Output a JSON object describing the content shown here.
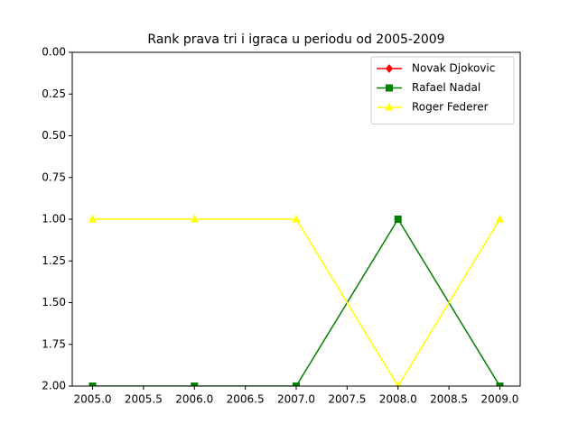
{
  "chart_data": {
    "type": "line",
    "title": "Rank prava tri i igraca u periodu od 2005-2009",
    "x": [
      2005,
      2006,
      2007,
      2008,
      2009
    ],
    "series": [
      {
        "name": "Novak Djokovic",
        "color": "#ff0000",
        "marker": "diamond",
        "values": [
          null,
          null,
          null,
          null,
          null
        ]
      },
      {
        "name": "Rafael Nadal",
        "color": "#008000",
        "marker": "square",
        "values": [
          2,
          2,
          2,
          1,
          2
        ]
      },
      {
        "name": "Roger Federer",
        "color": "#ffff00",
        "marker": "triangle",
        "values": [
          1,
          1,
          1,
          2,
          1
        ]
      }
    ],
    "xlim": [
      2004.8,
      2009.2
    ],
    "xticks": [
      {
        "value": 2005,
        "label": "2005.0"
      },
      {
        "value": 2005.5,
        "label": "2005.5"
      },
      {
        "value": 2006,
        "label": "2006.0"
      },
      {
        "value": 2006.5,
        "label": "2006.5"
      },
      {
        "value": 2007,
        "label": "2007.0"
      },
      {
        "value": 2007.5,
        "label": "2007.5"
      },
      {
        "value": 2008,
        "label": "2008.0"
      },
      {
        "value": 2008.5,
        "label": "2008.5"
      },
      {
        "value": 2009,
        "label": "2009.0"
      }
    ],
    "ylim": [
      2,
      0
    ],
    "yticks": [
      {
        "value": 0,
        "label": "0.00"
      },
      {
        "value": 0.25,
        "label": "0.25"
      },
      {
        "value": 0.5,
        "label": "0.50"
      },
      {
        "value": 0.75,
        "label": "0.75"
      },
      {
        "value": 1,
        "label": "1.00"
      },
      {
        "value": 1.25,
        "label": "1.25"
      },
      {
        "value": 1.5,
        "label": "1.50"
      },
      {
        "value": 1.75,
        "label": "1.75"
      },
      {
        "value": 2,
        "label": "2.00"
      }
    ],
    "grid": false,
    "legend": "upper right"
  }
}
